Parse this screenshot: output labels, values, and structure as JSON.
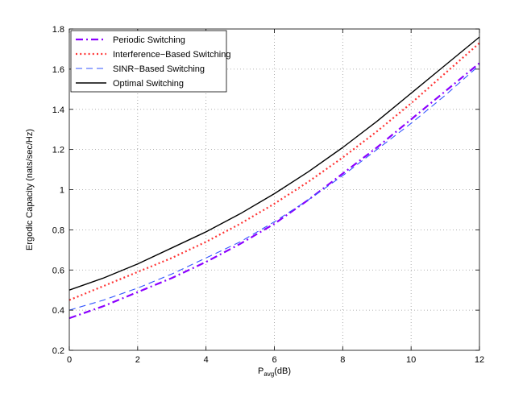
{
  "chart_data": {
    "type": "line",
    "title": "",
    "xlabel_main": "P",
    "xlabel_sub": "avg",
    "xlabel_unit": "(dB)",
    "ylabel": "Ergodic Capacity (nats/sec/Hz)",
    "xlim": [
      0,
      12
    ],
    "ylim": [
      0.2,
      1.8
    ],
    "xticks": [
      0,
      2,
      4,
      6,
      8,
      10,
      12
    ],
    "yticks": [
      0.2,
      0.4,
      0.6,
      0.8,
      1,
      1.2,
      1.4,
      1.6,
      1.8
    ],
    "grid": true,
    "legend_position": "top-left",
    "x": [
      0,
      1,
      2,
      3,
      4,
      5,
      6,
      7,
      8,
      9,
      10,
      11,
      12
    ],
    "series": [
      {
        "name": "Periodic Switching",
        "color": "#8B00FF",
        "dash": "dashdot",
        "values": [
          0.36,
          0.42,
          0.49,
          0.56,
          0.64,
          0.73,
          0.83,
          0.95,
          1.08,
          1.21,
          1.35,
          1.49,
          1.63
        ]
      },
      {
        "name": "Interference−Based Switching",
        "color": "#FF3333",
        "dash": "dotted",
        "values": [
          0.45,
          0.52,
          0.59,
          0.66,
          0.74,
          0.83,
          0.93,
          1.04,
          1.16,
          1.29,
          1.43,
          1.58,
          1.73
        ]
      },
      {
        "name": "SINR−Based Switching",
        "color": "#3355FF",
        "dash": "dashed",
        "values": [
          0.4,
          0.45,
          0.51,
          0.58,
          0.66,
          0.74,
          0.84,
          0.95,
          1.07,
          1.2,
          1.33,
          1.47,
          1.62
        ]
      },
      {
        "name": "Optimal Switching",
        "color": "#000000",
        "dash": "solid",
        "values": [
          0.5,
          0.56,
          0.63,
          0.71,
          0.79,
          0.88,
          0.98,
          1.09,
          1.21,
          1.34,
          1.48,
          1.62,
          1.76
        ]
      }
    ]
  }
}
